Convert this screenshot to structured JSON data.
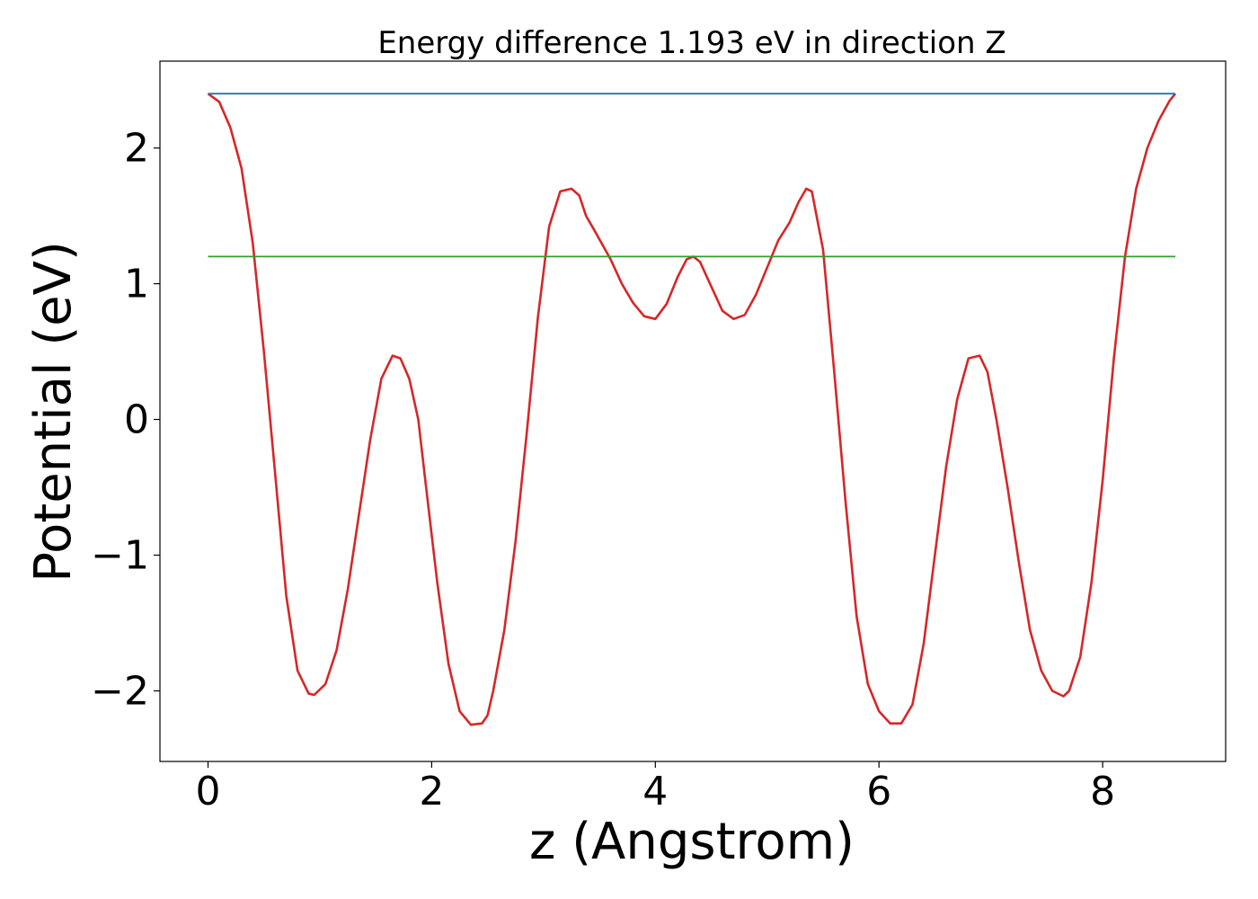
{
  "chart_data": {
    "type": "line",
    "title": "Energy difference 1.193 eV in direction Z",
    "xlabel": "z (Angstrom)",
    "ylabel": "Potential (eV)",
    "xlim": [
      -0.43,
      9.1
    ],
    "ylim": [
      -2.52,
      2.64
    ],
    "xticks": [
      0,
      2,
      4,
      6,
      8
    ],
    "xtick_labels": [
      "0",
      "2",
      "4",
      "6",
      "8"
    ],
    "yticks": [
      -2,
      -1,
      0,
      1,
      2
    ],
    "ytick_labels": [
      "−2",
      "−1",
      "0",
      "1",
      "2"
    ],
    "grid": false,
    "series": [
      {
        "color": "#d62728",
        "x": [
          0.0,
          0.1,
          0.2,
          0.3,
          0.4,
          0.5,
          0.6,
          0.7,
          0.8,
          0.9,
          0.95,
          1.05,
          1.15,
          1.25,
          1.35,
          1.45,
          1.55,
          1.65,
          1.72,
          1.8,
          1.88,
          1.95,
          2.05,
          2.15,
          2.25,
          2.35,
          2.45,
          2.5,
          2.55,
          2.65,
          2.75,
          2.85,
          2.95,
          3.05,
          3.15,
          3.25,
          3.32,
          3.38,
          3.45,
          3.6,
          3.7,
          3.8,
          3.9,
          4.0,
          4.1,
          4.2,
          4.28,
          4.34,
          4.4,
          4.5,
          4.6,
          4.7,
          4.8,
          4.9,
          5.0,
          5.1,
          5.2,
          5.28,
          5.35,
          5.4,
          5.5,
          5.6,
          5.7,
          5.8,
          5.9,
          6.0,
          6.1,
          6.2,
          6.3,
          6.4,
          6.5,
          6.6,
          6.7,
          6.8,
          6.9,
          6.97,
          7.05,
          7.15,
          7.25,
          7.35,
          7.45,
          7.55,
          7.65,
          7.7,
          7.8,
          7.9,
          8.0,
          8.1,
          8.2,
          8.3,
          8.4,
          8.5,
          8.6,
          8.65
        ],
        "y": [
          2.4,
          2.34,
          2.15,
          1.85,
          1.3,
          0.5,
          -0.4,
          -1.3,
          -1.85,
          -2.02,
          -2.03,
          -1.95,
          -1.7,
          -1.25,
          -0.7,
          -0.15,
          0.3,
          0.47,
          0.45,
          0.3,
          0.0,
          -0.5,
          -1.2,
          -1.8,
          -2.15,
          -2.25,
          -2.24,
          -2.18,
          -2.0,
          -1.55,
          -0.9,
          -0.1,
          0.75,
          1.42,
          1.68,
          1.7,
          1.65,
          1.5,
          1.4,
          1.18,
          1.0,
          0.86,
          0.76,
          0.74,
          0.85,
          1.05,
          1.18,
          1.2,
          1.16,
          0.98,
          0.8,
          0.74,
          0.77,
          0.92,
          1.12,
          1.32,
          1.45,
          1.6,
          1.7,
          1.68,
          1.25,
          0.35,
          -0.6,
          -1.45,
          -1.95,
          -2.15,
          -2.24,
          -2.24,
          -2.1,
          -1.65,
          -1.0,
          -0.35,
          0.15,
          0.45,
          0.47,
          0.35,
          0.0,
          -0.5,
          -1.05,
          -1.55,
          -1.85,
          -2.0,
          -2.04,
          -2.0,
          -1.75,
          -1.2,
          -0.45,
          0.45,
          1.2,
          1.7,
          2.0,
          2.2,
          2.35,
          2.4
        ]
      },
      {
        "color": "#1f77b4",
        "x": [
          0.0,
          8.65
        ],
        "y": [
          2.4,
          2.4
        ]
      },
      {
        "color": "#2ca02c",
        "x": [
          0.0,
          8.65
        ],
        "y": [
          1.2,
          1.2
        ]
      }
    ]
  }
}
